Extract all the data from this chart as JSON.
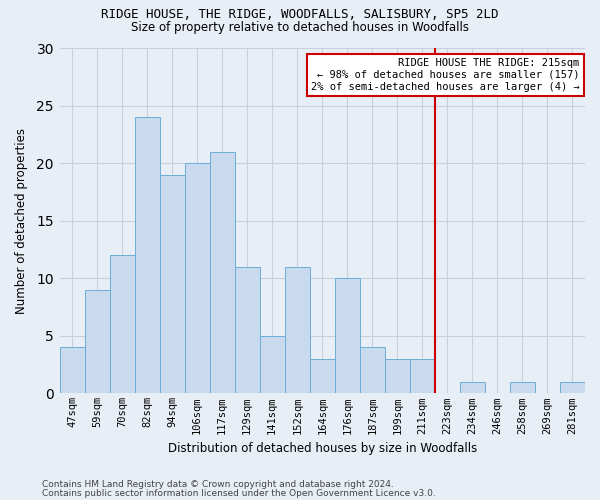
{
  "title1": "RIDGE HOUSE, THE RIDGE, WOODFALLS, SALISBURY, SP5 2LD",
  "title2": "Size of property relative to detached houses in Woodfalls",
  "xlabel": "Distribution of detached houses by size in Woodfalls",
  "ylabel": "Number of detached properties",
  "footer1": "Contains HM Land Registry data © Crown copyright and database right 2024.",
  "footer2": "Contains public sector information licensed under the Open Government Licence v3.0.",
  "bin_labels": [
    "47sqm",
    "59sqm",
    "70sqm",
    "82sqm",
    "94sqm",
    "106sqm",
    "117sqm",
    "129sqm",
    "141sqm",
    "152sqm",
    "164sqm",
    "176sqm",
    "187sqm",
    "199sqm",
    "211sqm",
    "223sqm",
    "234sqm",
    "246sqm",
    "258sqm",
    "269sqm",
    "281sqm"
  ],
  "bar_values": [
    4,
    9,
    12,
    24,
    19,
    20,
    21,
    11,
    5,
    11,
    3,
    10,
    4,
    3,
    3,
    0,
    1,
    0,
    1,
    0,
    1
  ],
  "bar_color": "#c9d9ee",
  "bar_edge_color": "#6baed6",
  "vline_x_index": 15.0,
  "annotation_text": "RIDGE HOUSE THE RIDGE: 215sqm\n← 98% of detached houses are smaller (157)\n2% of semi-detached houses are larger (4) →",
  "annotation_box_color": "#ffffff",
  "annotation_box_edge_color": "#cc0000",
  "vline_color": "#cc0000",
  "ylim": [
    0,
    30
  ],
  "yticks": [
    0,
    5,
    10,
    15,
    20,
    25,
    30
  ],
  "grid_color": "#c8d0dc",
  "bg_color": "#e8eef5"
}
